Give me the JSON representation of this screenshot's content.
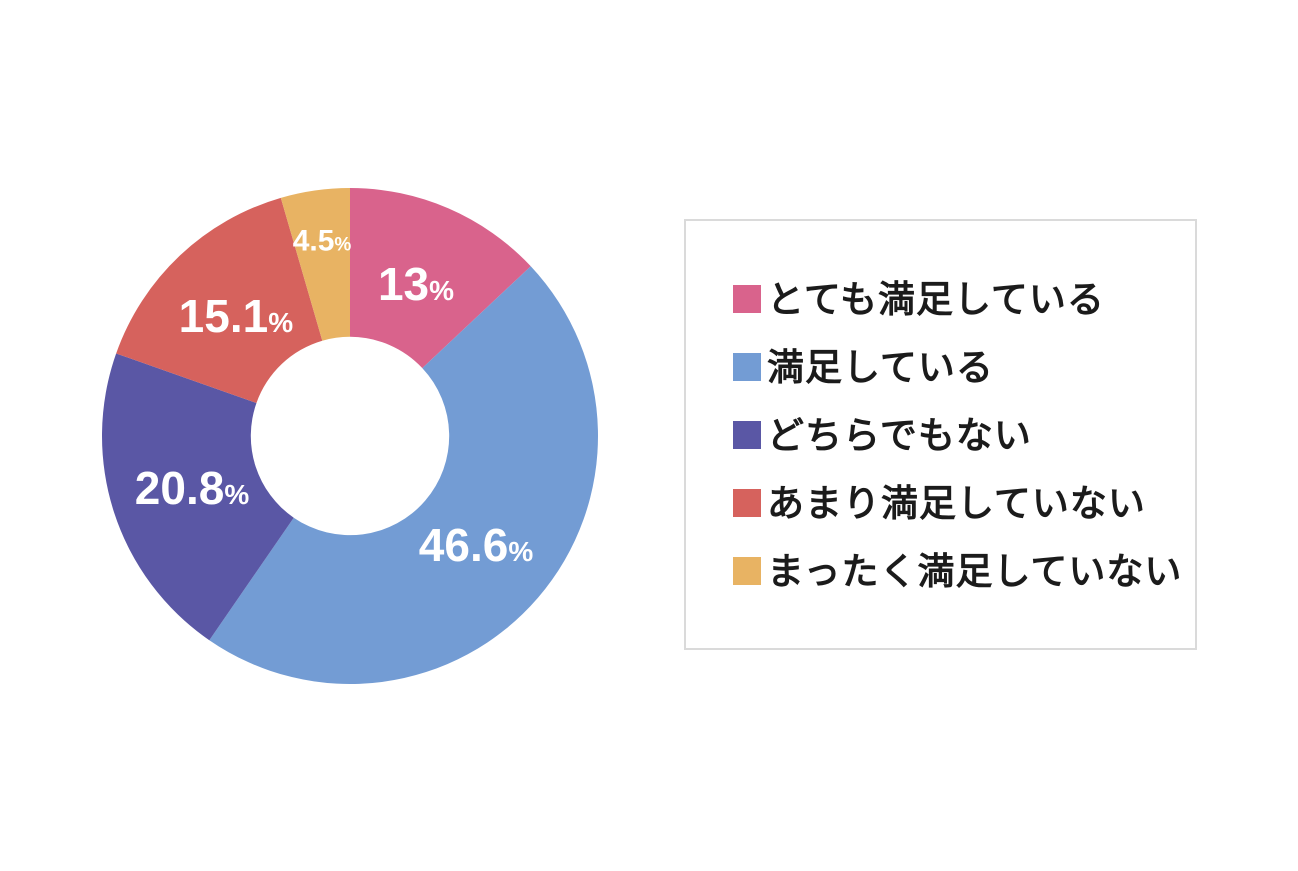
{
  "page": {
    "background": "#ffffff"
  },
  "chart_data": {
    "type": "pie",
    "subtype": "donut",
    "title": "",
    "categories": [
      "とても満足している",
      "満足している",
      "どちらでもない",
      "あまり満足していない",
      "まったく満足していない"
    ],
    "values": [
      13,
      46.6,
      20.8,
      15.1,
      4.5
    ],
    "value_labels": [
      "13",
      "46.6",
      "20.8",
      "15.1",
      "4.5"
    ],
    "unit": "%",
    "colors": [
      "#d9638c",
      "#739cd4",
      "#5a57a5",
      "#d6625d",
      "#e8b363"
    ],
    "start_angle_deg": 0,
    "direction": "clockwise",
    "donut_hole_ratio": 0.4,
    "slice_label_color": "#ffffff",
    "legend_position": "right"
  },
  "legend": {
    "border_color": "#dadada",
    "items": [
      {
        "label": "とても満足している",
        "color": "#d9638c"
      },
      {
        "label": "満足している",
        "color": "#739cd4"
      },
      {
        "label": "どちらでもない",
        "color": "#5a57a5"
      },
      {
        "label": "あまり満足していない",
        "color": "#d6625d"
      },
      {
        "label": "まったく満足していない",
        "color": "#e8b363"
      }
    ]
  }
}
